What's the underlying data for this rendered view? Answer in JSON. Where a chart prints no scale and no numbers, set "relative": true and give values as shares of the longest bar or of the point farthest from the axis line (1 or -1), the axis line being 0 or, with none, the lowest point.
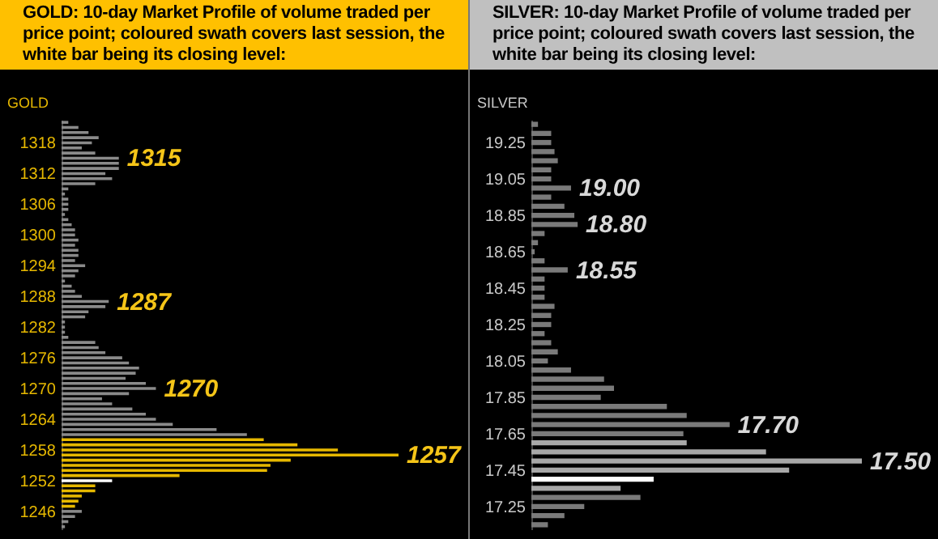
{
  "chart_data": [
    {
      "type": "bar",
      "orientation": "horizontal",
      "relative": true,
      "title": "GOLD:  10-day Market Profile of volume traded per price point; coloured swath covers last session, the white bar being its closing level:",
      "ylabel": "GOLD",
      "x": [
        1322,
        1321,
        1320,
        1319,
        1318,
        1317,
        1316,
        1315,
        1314,
        1313,
        1312,
        1311,
        1310,
        1309,
        1308,
        1307,
        1306,
        1305,
        1304,
        1303,
        1302,
        1301,
        1300,
        1299,
        1298,
        1297,
        1296,
        1295,
        1294,
        1293,
        1292,
        1291,
        1290,
        1289,
        1288,
        1287,
        1286,
        1285,
        1284,
        1283,
        1282,
        1281,
        1280,
        1279,
        1278,
        1277,
        1276,
        1275,
        1274,
        1273,
        1272,
        1271,
        1270,
        1269,
        1268,
        1267,
        1266,
        1265,
        1264,
        1263,
        1262,
        1261,
        1260,
        1259,
        1258,
        1257,
        1256,
        1255,
        1254,
        1253,
        1252,
        1251,
        1250,
        1249,
        1248,
        1247,
        1246,
        1245,
        1244,
        1243
      ],
      "ylim": [
        1242.5,
        1322.5
      ],
      "yticks": [
        1246,
        1252,
        1258,
        1264,
        1270,
        1276,
        1282,
        1288,
        1294,
        1300,
        1306,
        1312,
        1318
      ],
      "values": [
        0.02,
        0.05,
        0.08,
        0.11,
        0.09,
        0.06,
        0.1,
        0.17,
        0.17,
        0.17,
        0.13,
        0.15,
        0.1,
        0.02,
        0.01,
        0.02,
        0.02,
        0.02,
        0.01,
        0.02,
        0.03,
        0.04,
        0.04,
        0.05,
        0.04,
        0.05,
        0.05,
        0.04,
        0.07,
        0.05,
        0.04,
        0.01,
        0.03,
        0.04,
        0.06,
        0.14,
        0.13,
        0.08,
        0.07,
        0.01,
        0.01,
        0.01,
        0.02,
        0.1,
        0.11,
        0.13,
        0.18,
        0.2,
        0.23,
        0.22,
        0.19,
        0.25,
        0.28,
        0.2,
        0.12,
        0.15,
        0.21,
        0.25,
        0.28,
        0.33,
        0.46,
        0.55,
        0.6,
        0.7,
        0.82,
        1,
        0.68,
        0.62,
        0.61,
        0.35,
        0.15,
        0.1,
        0.1,
        0.06,
        0.05,
        0.04,
        0.06,
        0.04,
        0.02,
        0.01
      ],
      "colors": [
        "#8a8a8a",
        "#8a8a8a",
        "#8a8a8a",
        "#8a8a8a",
        "#8a8a8a",
        "#8a8a8a",
        "#8a8a8a",
        "#8a8a8a",
        "#8a8a8a",
        "#8a8a8a",
        "#8a8a8a",
        "#8a8a8a",
        "#8a8a8a",
        "#8a8a8a",
        "#8a8a8a",
        "#8a8a8a",
        "#8a8a8a",
        "#8a8a8a",
        "#8a8a8a",
        "#8a8a8a",
        "#8a8a8a",
        "#8a8a8a",
        "#8a8a8a",
        "#8a8a8a",
        "#8a8a8a",
        "#8a8a8a",
        "#8a8a8a",
        "#8a8a8a",
        "#8a8a8a",
        "#8a8a8a",
        "#8a8a8a",
        "#8a8a8a",
        "#8a8a8a",
        "#8a8a8a",
        "#8a8a8a",
        "#8a8a8a",
        "#8a8a8a",
        "#8a8a8a",
        "#8a8a8a",
        "#8a8a8a",
        "#8a8a8a",
        "#8a8a8a",
        "#8a8a8a",
        "#8a8a8a",
        "#8a8a8a",
        "#8a8a8a",
        "#8a8a8a",
        "#8a8a8a",
        "#8a8a8a",
        "#8a8a8a",
        "#8a8a8a",
        "#8a8a8a",
        "#8a8a8a",
        "#8a8a8a",
        "#8a8a8a",
        "#8a8a8a",
        "#8a8a8a",
        "#8a8a8a",
        "#8a8a8a",
        "#8a8a8a",
        "#8a8a8a",
        "#8a8a8a",
        "#e6b800",
        "#e6b800",
        "#e6b800",
        "#e6b800",
        "#e6b800",
        "#e6b800",
        "#e6b800",
        "#e6b800",
        "#ffffff",
        "#e6b800",
        "#e6b800",
        "#e6b800",
        "#e6b800",
        "#e6b800",
        "#8a8a8a",
        "#8a8a8a",
        "#8a8a8a",
        "#8a8a8a"
      ],
      "annotations": [
        {
          "text": "1315",
          "x": 0.17,
          "y": 1315
        },
        {
          "text": "1287",
          "x": 0.14,
          "y": 1287
        },
        {
          "text": "1270",
          "x": 0.28,
          "y": 1270
        },
        {
          "text": "1257",
          "x": 1,
          "y": 1257
        }
      ]
    },
    {
      "type": "bar",
      "orientation": "horizontal",
      "relative": true,
      "title": "SILVER:  10-day Market Profile of volume traded per price point; coloured swath covers last session, the white bar being its closing level:",
      "ylabel": "SILVER",
      "x": [
        19.35,
        19.3,
        19.25,
        19.2,
        19.15,
        19.1,
        19.05,
        19.0,
        18.95,
        18.9,
        18.85,
        18.8,
        18.75,
        18.7,
        18.65,
        18.6,
        18.55,
        18.5,
        18.45,
        18.4,
        18.35,
        18.3,
        18.25,
        18.2,
        18.15,
        18.1,
        18.05,
        18.0,
        17.95,
        17.9,
        17.85,
        17.8,
        17.75,
        17.7,
        17.65,
        17.6,
        17.55,
        17.5,
        17.45,
        17.4,
        17.35,
        17.3,
        17.25,
        17.2,
        17.15
      ],
      "ylim": [
        17.125,
        19.375
      ],
      "yticks": [
        17.25,
        17.45,
        17.65,
        17.85,
        18.05,
        18.25,
        18.45,
        18.65,
        18.85,
        19.05,
        19.25
      ],
      "values": [
        0.02,
        0.06,
        0.06,
        0.07,
        0.08,
        0.06,
        0.06,
        0.12,
        0.06,
        0.1,
        0.13,
        0.14,
        0.04,
        0.02,
        0.01,
        0.04,
        0.11,
        0.04,
        0.04,
        0.04,
        0.07,
        0.06,
        0.06,
        0.04,
        0.06,
        0.08,
        0.05,
        0.12,
        0.22,
        0.25,
        0.21,
        0.41,
        0.47,
        0.6,
        0.46,
        0.47,
        0.71,
        1,
        0.78,
        0.37,
        0.27,
        0.33,
        0.16,
        0.1,
        0.05
      ],
      "colors": [
        "#7a7a7a",
        "#7a7a7a",
        "#7a7a7a",
        "#7a7a7a",
        "#7a7a7a",
        "#7a7a7a",
        "#7a7a7a",
        "#7a7a7a",
        "#7a7a7a",
        "#7a7a7a",
        "#7a7a7a",
        "#7a7a7a",
        "#7a7a7a",
        "#7a7a7a",
        "#7a7a7a",
        "#7a7a7a",
        "#7a7a7a",
        "#7a7a7a",
        "#7a7a7a",
        "#7a7a7a",
        "#7a7a7a",
        "#7a7a7a",
        "#7a7a7a",
        "#7a7a7a",
        "#7a7a7a",
        "#7a7a7a",
        "#7a7a7a",
        "#7a7a7a",
        "#7a7a7a",
        "#7a7a7a",
        "#7a7a7a",
        "#7a7a7a",
        "#7a7a7a",
        "#7a7a7a",
        "#7a7a7a",
        "#a8a8a8",
        "#a8a8a8",
        "#a8a8a8",
        "#a8a8a8",
        "#ffffff",
        "#a8a8a8",
        "#7a7a7a",
        "#7a7a7a",
        "#7a7a7a",
        "#7a7a7a"
      ],
      "annotations": [
        {
          "text": "19.00",
          "x": 0.12,
          "y": 19.0
        },
        {
          "text": "18.80",
          "x": 0.14,
          "y": 18.8
        },
        {
          "text": "18.55",
          "x": 0.11,
          "y": 18.55
        },
        {
          "text": "17.70",
          "x": 0.6,
          "y": 17.7
        },
        {
          "text": "17.50",
          "x": 1,
          "y": 17.5
        }
      ]
    }
  ]
}
